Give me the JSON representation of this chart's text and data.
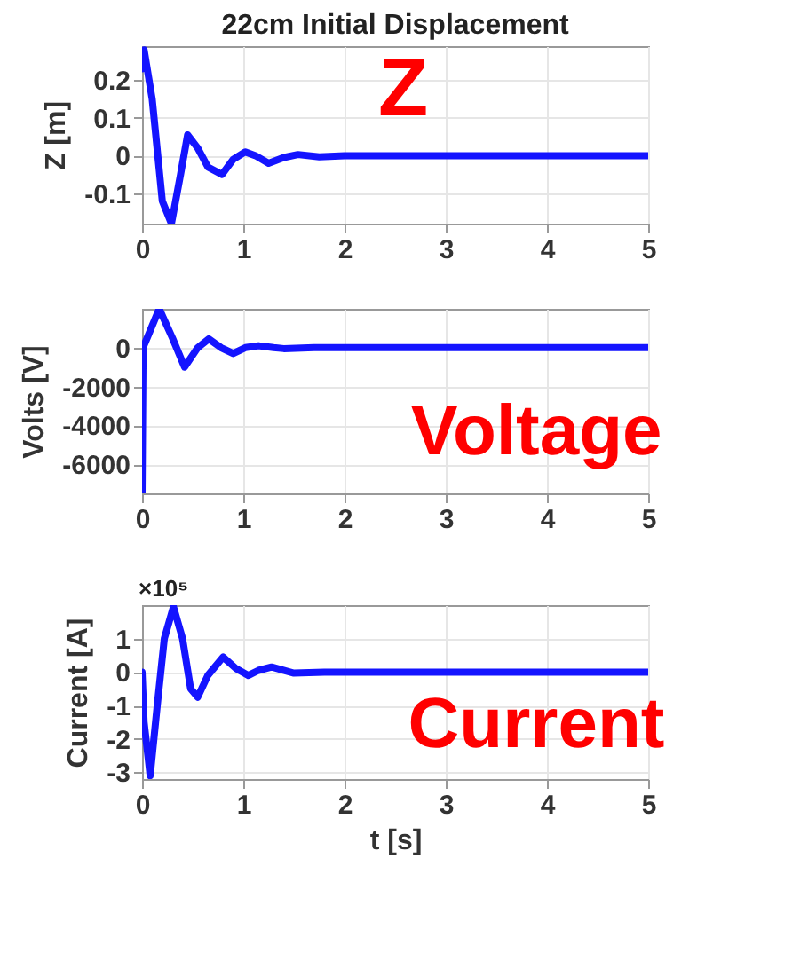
{
  "chart_data": [
    {
      "type": "line",
      "title": "22cm Initial Displacement",
      "ylabel": "Z [m]",
      "annotations": [
        "Z"
      ],
      "xlim": [
        0,
        5
      ],
      "xticks": [
        0,
        1,
        2,
        3,
        4,
        5
      ],
      "ylim": [
        -0.18,
        0.29
      ],
      "yticks": [
        -0.1,
        0,
        0.1,
        0.2
      ],
      "grid": true,
      "series": [
        {
          "color": "#1414ff",
          "x": [
            0,
            0.02,
            0.1,
            0.2,
            0.29,
            0.38,
            0.45,
            0.55,
            0.65,
            0.79,
            0.9,
            1.02,
            1.12,
            1.25,
            1.4,
            1.54,
            1.75,
            2,
            3,
            5
          ],
          "values": [
            0.23,
            0.28,
            0.15,
            -0.12,
            -0.18,
            -0.05,
            0.055,
            0.02,
            -0.03,
            -0.05,
            -0.01,
            0.01,
            0,
            -0.02,
            -0.005,
            0.003,
            -0.003,
            0,
            0,
            0
          ]
        }
      ]
    },
    {
      "type": "line",
      "ylabel": "Volts [V]",
      "annotations": [
        "Voltage"
      ],
      "xlim": [
        0,
        5
      ],
      "xticks": [
        0,
        1,
        2,
        3,
        4,
        5
      ],
      "ylim": [
        -7500,
        2000
      ],
      "yticks": [
        -6000,
        -4000,
        -2000,
        0
      ],
      "grid": true,
      "series": [
        {
          "color": "#1414ff",
          "x": [
            0,
            0.01,
            0.05,
            0.17,
            0.3,
            0.42,
            0.55,
            0.66,
            0.78,
            0.9,
            1.02,
            1.15,
            1.3,
            1.4,
            1.7,
            5
          ],
          "values": [
            -7500,
            0,
            500,
            2000,
            500,
            -1000,
            0,
            450,
            0,
            -300,
            0,
            100,
            0,
            -50,
            0,
            0
          ]
        }
      ]
    },
    {
      "type": "line",
      "ylabel": "Current [A]",
      "xlabel": "t [s]",
      "annotations": [
        "×10⁵",
        "Current"
      ],
      "xlim": [
        0,
        5
      ],
      "xticks": [
        0,
        1,
        2,
        3,
        4,
        5
      ],
      "ylim": [
        -3.2,
        2
      ],
      "yticks": [
        -3,
        -2,
        -1,
        0,
        1
      ],
      "grid": true,
      "series": [
        {
          "color": "#1414ff",
          "x": [
            0,
            0.02,
            0.08,
            0.15,
            0.22,
            0.31,
            0.4,
            0.48,
            0.55,
            0.65,
            0.8,
            0.93,
            1.05,
            1.15,
            1.28,
            1.5,
            1.8,
            5
          ],
          "values": [
            0,
            -1.5,
            -3.1,
            -1,
            1,
            1.95,
            1,
            -0.5,
            -0.75,
            -0.1,
            0.45,
            0.1,
            -0.1,
            0.05,
            0.15,
            -0.03,
            0,
            0
          ]
        }
      ]
    }
  ]
}
